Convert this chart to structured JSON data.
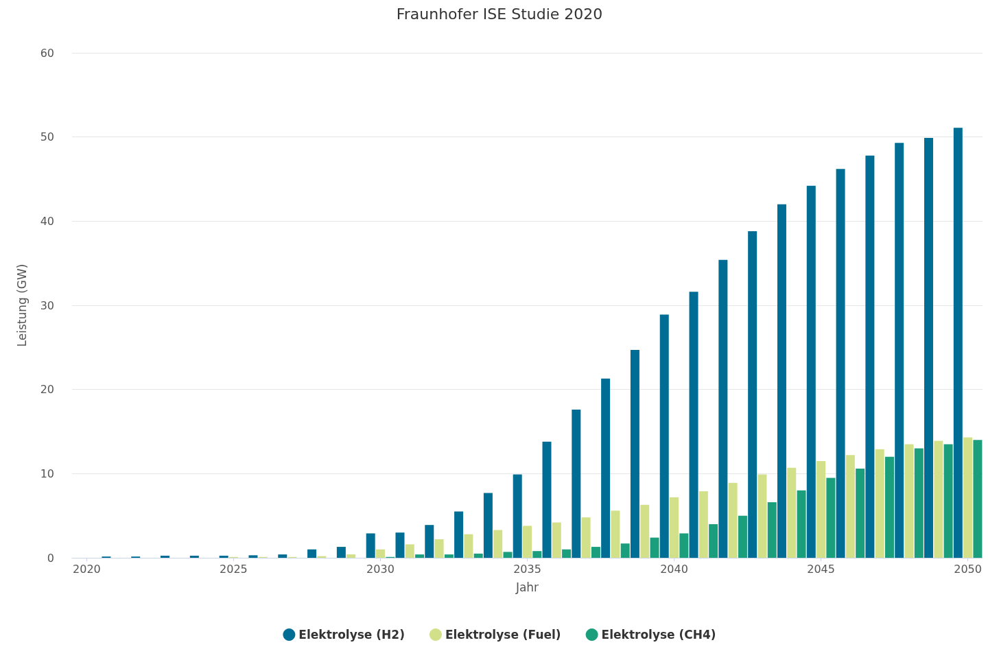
{
  "chart_data": {
    "type": "bar",
    "title": "Fraunhofer ISE Studie 2020",
    "xlabel": "Jahr",
    "ylabel": "Leistung (GW)",
    "x": [
      2021,
      2022,
      2023,
      2024,
      2025,
      2026,
      2027,
      2028,
      2029,
      2030,
      2031,
      2032,
      2033,
      2034,
      2035,
      2036,
      2037,
      2038,
      2039,
      2040,
      2041,
      2042,
      2043,
      2044,
      2045,
      2046,
      2047,
      2048,
      2049,
      2050
    ],
    "series": [
      {
        "name": "Elektrolyse (H2)",
        "color": "#006e94",
        "values": [
          0.15,
          0.15,
          0.25,
          0.25,
          0.25,
          0.3,
          0.4,
          1.0,
          1.3,
          2.9,
          3.0,
          3.9,
          5.5,
          7.7,
          9.9,
          13.8,
          17.6,
          21.3,
          24.7,
          28.9,
          31.6,
          35.4,
          38.8,
          42.0,
          44.2,
          46.2,
          47.8,
          49.3,
          49.9,
          51.1
        ]
      },
      {
        "name": "Elektrolyse (Fuel)",
        "color": "#d2e08a",
        "values": [
          0,
          0,
          0,
          0,
          0.1,
          0.1,
          0.1,
          0.2,
          0.4,
          1.0,
          1.6,
          2.2,
          2.8,
          3.3,
          3.8,
          4.2,
          4.8,
          5.6,
          6.3,
          7.2,
          7.9,
          8.9,
          9.9,
          10.7,
          11.5,
          12.2,
          12.9,
          13.5,
          13.9,
          14.3
        ]
      },
      {
        "name": "Elektrolyse (CH4)",
        "color": "#1a9e7c",
        "values": [
          0,
          0,
          0,
          0,
          0,
          0,
          0,
          0,
          0,
          0.1,
          0.4,
          0.4,
          0.5,
          0.7,
          0.8,
          1.0,
          1.3,
          1.7,
          2.4,
          2.9,
          4.0,
          5.0,
          6.6,
          8.0,
          9.5,
          10.6,
          12.0,
          13.0,
          13.5,
          14.0
        ]
      }
    ],
    "xlim": [
      2019.5,
      2050.5
    ],
    "xticks": [
      2020,
      2025,
      2030,
      2035,
      2040,
      2045,
      2050
    ],
    "ylim": [
      0,
      60
    ],
    "yticks": [
      0,
      10,
      20,
      30,
      40,
      50,
      60
    ],
    "grid": "y",
    "legend": "bottom"
  }
}
